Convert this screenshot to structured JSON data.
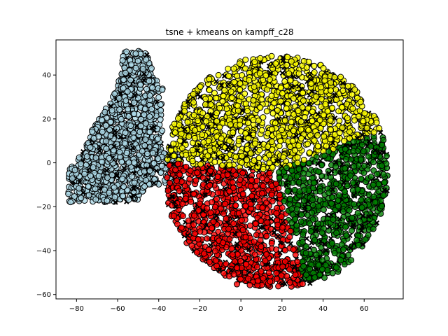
{
  "chart_data": {
    "type": "scatter",
    "title": "tsne + kmeans on kampff_c28",
    "xlabel": "",
    "ylabel": "",
    "xlim": [
      -90,
      79
    ],
    "ylim": [
      -62,
      56
    ],
    "xticks": [
      -80,
      -60,
      -40,
      -20,
      0,
      20,
      40,
      60
    ],
    "yticks": [
      -60,
      -40,
      -20,
      0,
      20,
      40
    ],
    "grid": false,
    "legend": "none",
    "marker_styles": {
      "circle": "o",
      "cross": "x"
    },
    "series": [
      {
        "color": "#add8e6",
        "region": "left elongated cluster",
        "x_range": [
          -85,
          -25
        ],
        "y_range": [
          -18,
          51
        ],
        "approx_center": [
          -55,
          15
        ]
      },
      {
        "color": "#ffff00",
        "region": "top wedge of right blob",
        "x_range": [
          -23,
          50
        ],
        "y_range": [
          -5,
          50
        ],
        "approx_center": [
          15,
          25
        ]
      },
      {
        "color": "#ff0000",
        "region": "lower-left wedge of right blob",
        "x_range": [
          -33,
          33
        ],
        "y_range": [
          -57,
          5
        ],
        "approx_center": [
          0,
          -25
        ]
      },
      {
        "color": "#008000",
        "region": "right wedge of right blob",
        "x_range": [
          17,
          72
        ],
        "y_range": [
          -50,
          32
        ],
        "approx_center": [
          48,
          -5
        ]
      }
    ]
  }
}
